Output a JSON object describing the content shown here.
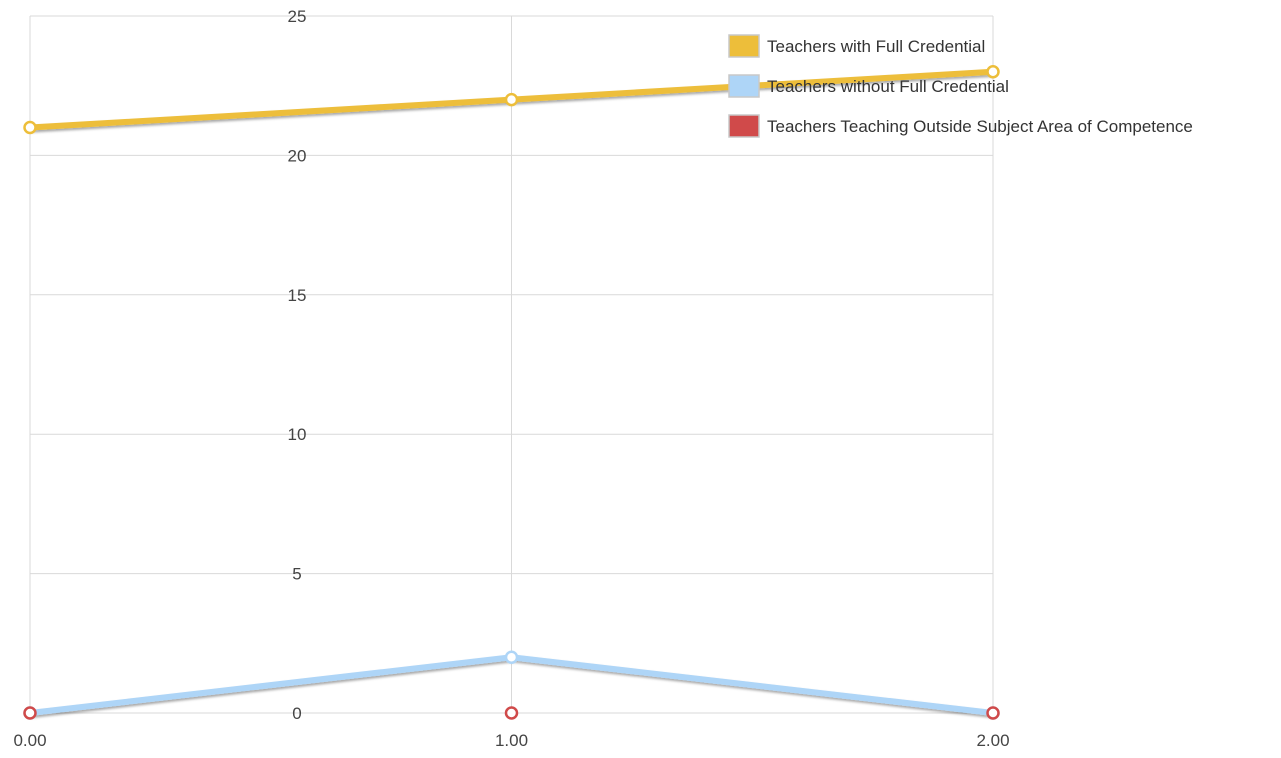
{
  "chart_data": {
    "type": "line",
    "title": "",
    "xlabel": "",
    "ylabel": "",
    "x": [
      0,
      1,
      2
    ],
    "x_tick_labels": [
      "0.00",
      "1.00",
      "2.00"
    ],
    "xlim": [
      0,
      2
    ],
    "y_ticks": [
      0,
      5,
      10,
      15,
      20,
      25
    ],
    "y_tick_labels": [
      "0",
      "5",
      "10",
      "15",
      "20",
      "25"
    ],
    "ylim": [
      0,
      25
    ],
    "grid": true,
    "legend_position": "top-right",
    "series": [
      {
        "name": "Teachers with Full Credential",
        "color": "#EDBE3A",
        "values": [
          21,
          22,
          23
        ]
      },
      {
        "name": "Teachers without Full Credential",
        "color": "#AED5F7",
        "values": [
          0,
          2,
          0
        ]
      },
      {
        "name": "Teachers Teaching Outside Subject Area of Competence",
        "color": "#D04A4A",
        "values": [
          0,
          0,
          0
        ]
      }
    ]
  }
}
